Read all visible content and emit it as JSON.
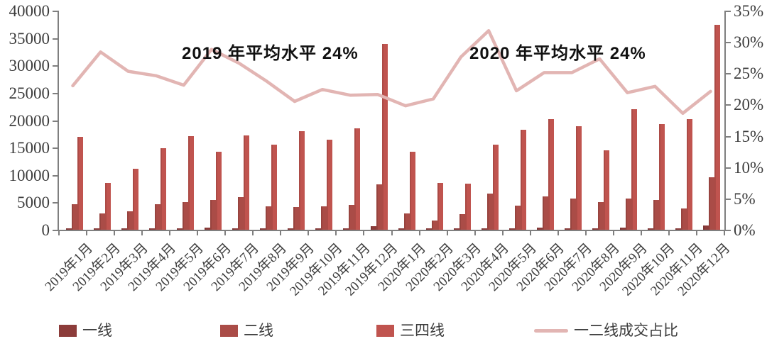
{
  "chart_data": {
    "type": "bar+line",
    "title": "",
    "categories": [
      "2019年1月",
      "2019年2月",
      "2019年3月",
      "2019年4月",
      "2019年5月",
      "2019年6月",
      "2019年7月",
      "2019年8月",
      "2019年9月",
      "2019年10月",
      "2019年11月",
      "2019年12月",
      "2020年1月",
      "2020年2月",
      "2020年3月",
      "2020年4月",
      "2020年5月",
      "2020年6月",
      "2020年7月",
      "2020年8月",
      "2020年9月",
      "2020年10月",
      "2020年11月",
      "2020年12月"
    ],
    "series": [
      {
        "name": "一线",
        "type": "bar",
        "axis": "left",
        "color": "#8c3c3a",
        "values": [
          300,
          250,
          300,
          300,
          250,
          450,
          300,
          150,
          200,
          200,
          250,
          650,
          250,
          150,
          150,
          250,
          250,
          350,
          300,
          250,
          450,
          300,
          250,
          750
        ]
      },
      {
        "name": "二线",
        "type": "bar",
        "axis": "left",
        "color": "#aa4c47",
        "values": [
          4650,
          3000,
          3400,
          4700,
          5000,
          5400,
          5900,
          4300,
          4100,
          4300,
          4550,
          8300,
          3000,
          1650,
          2850,
          6550,
          4450,
          6050,
          5650,
          5000,
          5700,
          5450,
          3900,
          9600
        ]
      },
      {
        "name": "三四线",
        "type": "bar",
        "axis": "left",
        "color": "#c0544f",
        "values": [
          17000,
          8600,
          11150,
          14900,
          17100,
          14200,
          17200,
          15500,
          18000,
          16400,
          18450,
          33900,
          14200,
          8600,
          8450,
          15500,
          18200,
          20150,
          18900,
          14450,
          22050,
          19250,
          20250,
          37400
        ]
      },
      {
        "name": "一二线成交占比",
        "type": "line",
        "axis": "right",
        "color": "#e2b5b3",
        "values": [
          23.0,
          28.4,
          25.3,
          24.6,
          23.1,
          28.8,
          26.6,
          23.7,
          20.5,
          22.4,
          21.5,
          21.6,
          19.8,
          20.9,
          27.6,
          31.8,
          22.2,
          25.1,
          25.1,
          27.3,
          21.9,
          22.9,
          18.6,
          22.1
        ]
      }
    ],
    "left_axis": {
      "min": 0,
      "max": 40000,
      "step": 5000,
      "labels": [
        "0",
        "5000",
        "10000",
        "15000",
        "20000",
        "25000",
        "30000",
        "35000",
        "40000"
      ]
    },
    "right_axis": {
      "min": 0,
      "max": 35,
      "step": 5,
      "labels": [
        "0%",
        "5%",
        "10%",
        "15%",
        "20%",
        "25%",
        "30%",
        "35%"
      ]
    },
    "annotations": [
      {
        "text": "2019 年平均水平 24%",
        "x": 256,
        "y": 55
      },
      {
        "text": "2020 年平均水平 24%",
        "x": 661,
        "y": 55
      }
    ],
    "grid": "off",
    "legend_position": "bottom"
  },
  "legend": {
    "items": [
      {
        "label": "一线",
        "swatch": "bar",
        "color": "#8c3c3a",
        "x": 83
      },
      {
        "label": "二线",
        "swatch": "bar",
        "color": "#aa4c47",
        "x": 310
      },
      {
        "label": "三四线",
        "swatch": "bar",
        "color": "#c0544f",
        "x": 530
      },
      {
        "label": "一二线成交占比",
        "swatch": "line",
        "color": "#e2b5b3",
        "x": 752
      }
    ]
  }
}
